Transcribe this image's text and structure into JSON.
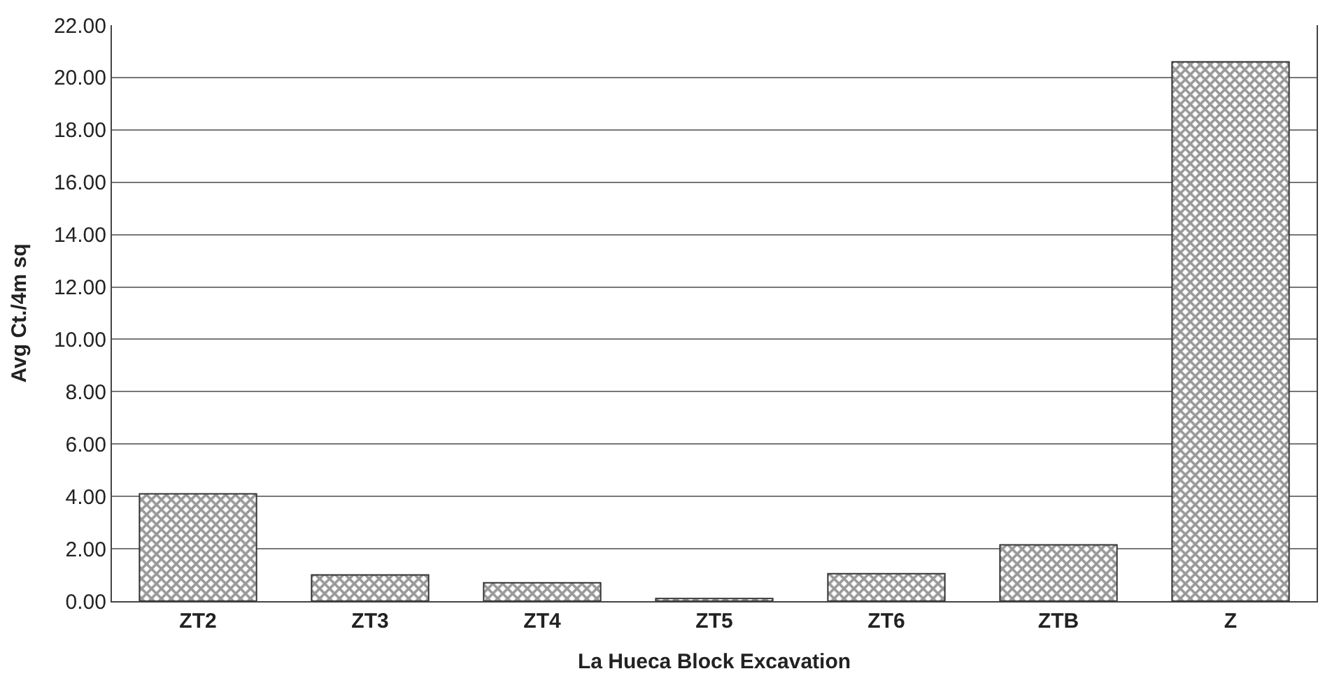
{
  "chart_data": {
    "type": "bar",
    "xlabel": "La Hueca Block Excavation",
    "ylabel": "Avg Ct./4m sq",
    "categories": [
      "ZT2",
      "ZT3",
      "ZT4",
      "ZT5",
      "ZT6",
      "ZTB",
      "Z"
    ],
    "values": [
      4.1,
      1.0,
      0.7,
      0.1,
      1.05,
      2.15,
      20.6
    ],
    "color": "#333333",
    "ylim": [
      0,
      22
    ],
    "yticks": [
      {
        "value": 0,
        "label": "0.00"
      },
      {
        "value": 2,
        "label": "2.00"
      },
      {
        "value": 4,
        "label": "4.00"
      },
      {
        "value": 6,
        "label": "6.00"
      },
      {
        "value": 8,
        "label": "8.00"
      },
      {
        "value": 10,
        "label": "10.00"
      },
      {
        "value": 12,
        "label": "12.00"
      },
      {
        "value": 14,
        "label": "14.00"
      },
      {
        "value": 16,
        "label": "16.00"
      },
      {
        "value": 18,
        "label": "18.00"
      },
      {
        "value": 20,
        "label": "20.00"
      },
      {
        "value": 22,
        "label": "22.00"
      }
    ],
    "grid": "y",
    "legend": false
  }
}
